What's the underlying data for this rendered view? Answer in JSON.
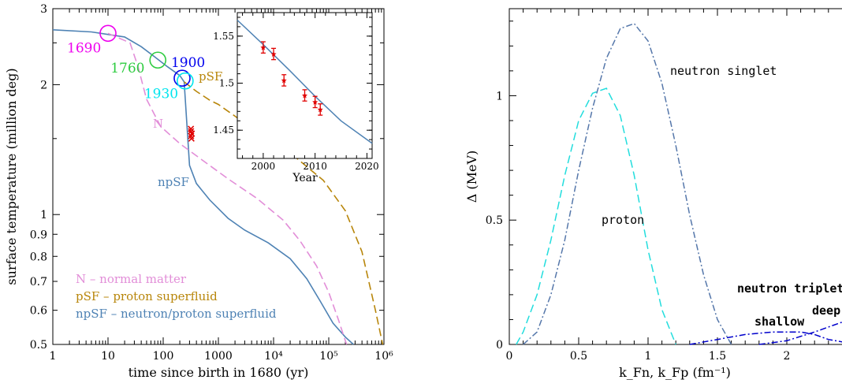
{
  "chart_data": [
    {
      "type": "line",
      "xscale": "log",
      "yscale": "log",
      "xlim": [
        1,
        1000000
      ],
      "ylim": [
        0.5,
        3
      ],
      "xlabel": "time since birth in 1680 (yr)",
      "ylabel": "surface temperature  (million deg)",
      "xticklabels": [
        "1",
        "10",
        "100",
        "1000",
        "10⁴",
        "10⁵",
        "10⁶"
      ],
      "yticklabels": [
        "0.5",
        "0.6",
        "0.7",
        "0.8",
        "0.9",
        "1",
        "2",
        "3"
      ],
      "series": [
        {
          "name": "npSF",
          "color": "#4e82b4",
          "style": "solid",
          "points": [
            [
              1,
              2.68
            ],
            [
              5,
              2.65
            ],
            [
              20,
              2.58
            ],
            [
              40,
              2.45
            ],
            [
              70,
              2.32
            ],
            [
              120,
              2.2
            ],
            [
              200,
              2.1
            ],
            [
              240,
              2.03
            ],
            [
              300,
              1.3
            ],
            [
              400,
              1.18
            ],
            [
              700,
              1.08
            ],
            [
              1500,
              0.98
            ],
            [
              3000,
              0.92
            ],
            [
              8000,
              0.86
            ],
            [
              20000,
              0.79
            ],
            [
              40000,
              0.71
            ],
            [
              70000,
              0.63
            ],
            [
              120000,
              0.56
            ],
            [
              200000,
              0.52
            ],
            [
              280000,
              0.5
            ]
          ]
        },
        {
          "name": "N",
          "color": "#e28ed8",
          "style": "dashed",
          "points": [
            [
              10,
              2.63
            ],
            [
              25,
              2.5
            ],
            [
              35,
              2.2
            ],
            [
              50,
              1.85
            ],
            [
              90,
              1.6
            ],
            [
              200,
              1.46
            ],
            [
              500,
              1.34
            ],
            [
              1500,
              1.21
            ],
            [
              5000,
              1.09
            ],
            [
              15000,
              0.97
            ],
            [
              30000,
              0.87
            ],
            [
              60000,
              0.76
            ],
            [
              100000,
              0.66
            ],
            [
              150000,
              0.57
            ],
            [
              190000,
              0.52
            ],
            [
              210000,
              0.5
            ]
          ]
        },
        {
          "name": "pSF",
          "color": "#b8860b",
          "style": "dashed",
          "points": [
            [
              240,
              2.03
            ],
            [
              400,
              1.93
            ],
            [
              700,
              1.84
            ],
            [
              1000,
              1.8
            ],
            [
              2000,
              1.69
            ],
            [
              5000,
              1.55
            ],
            [
              20000,
              1.39
            ],
            [
              80000,
              1.2
            ],
            [
              200000,
              1.02
            ],
            [
              400000,
              0.82
            ],
            [
              700000,
              0.6
            ],
            [
              950000,
              0.5
            ]
          ]
        }
      ],
      "markers": [
        {
          "label": "1690",
          "x": 10,
          "y": 2.63,
          "color": "#ee00ee"
        },
        {
          "label": "1760",
          "x": 80,
          "y": 2.28,
          "color": "#2ecc40"
        },
        {
          "label": "1900",
          "x": 220,
          "y": 2.07,
          "color": "#0000ee"
        },
        {
          "label": "1930",
          "x": 250,
          "y": 2.04,
          "color": "#00e5ee"
        }
      ],
      "observations": {
        "color": "#e00000",
        "x": [
          320,
          320,
          325,
          330,
          318
        ],
        "y": [
          1.52,
          1.56,
          1.5,
          1.54,
          1.58
        ]
      },
      "legend": [
        {
          "text": "N  –  normal matter",
          "color": "#e28ed8"
        },
        {
          "text": "pSF  –  proton superfluid",
          "color": "#b8860b"
        },
        {
          "text": "npSF  –  neutron/proton superfluid",
          "color": "#4e82b4"
        }
      ],
      "inset": {
        "type": "line",
        "xlabel": "Year",
        "xlim": [
          1995,
          2021
        ],
        "ylim": [
          1.42,
          1.575
        ],
        "xticklabels": [
          "2000",
          "2010",
          "2020"
        ],
        "yticklabels": [
          "1.45",
          "1.5",
          "1.55"
        ],
        "line": {
          "color": "#4e82b4",
          "points": [
            [
              1995,
              1.567
            ],
            [
              2000,
              1.541
            ],
            [
              2005,
              1.514
            ],
            [
              2010,
              1.486
            ],
            [
              2015,
              1.46
            ],
            [
              2021,
              1.436
            ]
          ]
        },
        "data": {
          "color": "#e00000",
          "x": [
            2000,
            2002,
            2004,
            2008,
            2010,
            2011
          ],
          "y": [
            1.538,
            1.531,
            1.503,
            1.487,
            1.48,
            1.472
          ],
          "err": [
            0.006,
            0.006,
            0.006,
            0.006,
            0.006,
            0.006
          ]
        }
      }
    },
    {
      "type": "line",
      "xlim": [
        0,
        2.4
      ],
      "ylim": [
        0,
        1.35
      ],
      "xlabel": "k_Fn, k_Fp (fm⁻¹)",
      "ylabel": "Δ (MeV)",
      "xticklabels": [
        "0",
        "0.5",
        "1",
        "1.5",
        "2"
      ],
      "yticklabels": [
        "0",
        "0.5",
        "1"
      ],
      "series": [
        {
          "name": "neutron singlet",
          "color": "#5577aa",
          "style": "dashdot",
          "points": [
            [
              0.1,
              0
            ],
            [
              0.2,
              0.05
            ],
            [
              0.3,
              0.2
            ],
            [
              0.4,
              0.42
            ],
            [
              0.5,
              0.7
            ],
            [
              0.6,
              0.95
            ],
            [
              0.7,
              1.15
            ],
            [
              0.8,
              1.27
            ],
            [
              0.9,
              1.29
            ],
            [
              1.0,
              1.22
            ],
            [
              1.1,
              1.05
            ],
            [
              1.2,
              0.8
            ],
            [
              1.3,
              0.52
            ],
            [
              1.4,
              0.28
            ],
            [
              1.5,
              0.1
            ],
            [
              1.6,
              0
            ]
          ]
        },
        {
          "name": "proton",
          "color": "#22dddd",
          "style": "dashed",
          "points": [
            [
              0.05,
              0
            ],
            [
              0.1,
              0.05
            ],
            [
              0.2,
              0.2
            ],
            [
              0.3,
              0.42
            ],
            [
              0.4,
              0.68
            ],
            [
              0.5,
              0.9
            ],
            [
              0.6,
              1.01
            ],
            [
              0.7,
              1.03
            ],
            [
              0.8,
              0.92
            ],
            [
              0.9,
              0.68
            ],
            [
              1.0,
              0.38
            ],
            [
              1.1,
              0.14
            ],
            [
              1.2,
              0
            ]
          ]
        },
        {
          "name": "shallow",
          "color": "#0000cc",
          "style": "dashdot",
          "points": [
            [
              1.3,
              0
            ],
            [
              1.5,
              0.02
            ],
            [
              1.7,
              0.04
            ],
            [
              1.9,
              0.05
            ],
            [
              2.1,
              0.05
            ],
            [
              2.2,
              0.04
            ],
            [
              2.3,
              0.02
            ],
            [
              2.4,
              0.01
            ]
          ]
        },
        {
          "name": "deep",
          "color": "#0000cc",
          "style": "dashdot",
          "points": [
            [
              1.8,
              0
            ],
            [
              2.0,
              0.015
            ],
            [
              2.2,
              0.05
            ],
            [
              2.3,
              0.07
            ],
            [
              2.4,
              0.09
            ]
          ]
        }
      ],
      "annotations": [
        "neutron triplet"
      ]
    }
  ]
}
